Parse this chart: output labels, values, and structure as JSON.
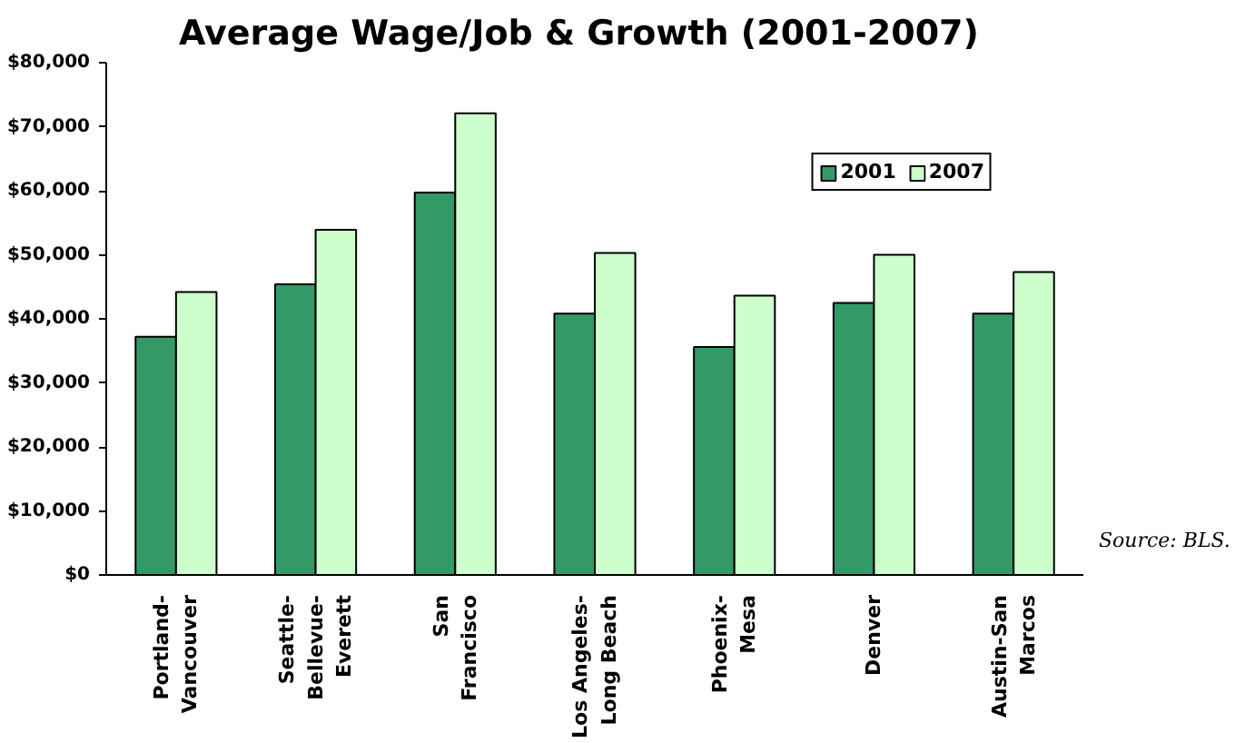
{
  "chart_data": {
    "type": "bar",
    "title": "Average Wage/Job & Growth (2001-2007)",
    "categories": [
      "Portland-\nVancouver",
      "Seattle-\nBellevue-\nEverett",
      "San\nFrancisco",
      "Los Angeles-\nLong Beach",
      "Phoenix-\nMesa",
      "Denver",
      "Austin-San\nMarcos"
    ],
    "series": [
      {
        "name": "2001",
        "color": "#339966",
        "values": [
          37200,
          45400,
          59700,
          40800,
          35600,
          42500,
          40800
        ]
      },
      {
        "name": "2007",
        "color": "#ccffcc",
        "values": [
          44200,
          53900,
          72100,
          50300,
          43600,
          50000,
          47300
        ]
      }
    ],
    "ylim": [
      0,
      80000
    ],
    "yticks": [
      {
        "value": 0,
        "label": "$0"
      },
      {
        "value": 10000,
        "label": "$10,000"
      },
      {
        "value": 20000,
        "label": "$20,000"
      },
      {
        "value": 30000,
        "label": "$30,000"
      },
      {
        "value": 40000,
        "label": "$40,000"
      },
      {
        "value": 50000,
        "label": "$50,000"
      },
      {
        "value": 60000,
        "label": "$60,000"
      },
      {
        "value": 70000,
        "label": "$70,000"
      },
      {
        "value": 80000,
        "label": "$80,000"
      }
    ],
    "annotations": [
      "Source: BLS."
    ],
    "legend": "top right",
    "grid": false
  }
}
